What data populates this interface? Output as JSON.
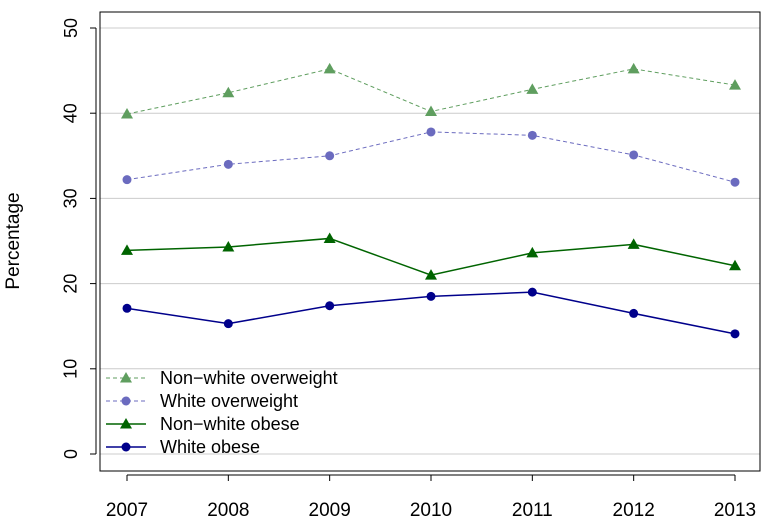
{
  "chart_data": {
    "type": "line",
    "title": "",
    "xlabel": "",
    "ylabel": "Percentage",
    "categories": [
      "2007",
      "2008",
      "2009",
      "2010",
      "2011",
      "2012",
      "2013"
    ],
    "y_ticks": [
      "0",
      "10",
      "20",
      "30",
      "40",
      "50"
    ],
    "ylim": [
      0,
      50
    ],
    "grid": "horizontal",
    "legend_position": "bottom-left",
    "series": [
      {
        "name": "Non−white overweight",
        "values": [
          39.9,
          42.4,
          45.2,
          40.2,
          42.8,
          45.2,
          43.3
        ],
        "color": "#5f9e5f",
        "marker": "triangle",
        "line": "dashed"
      },
      {
        "name": "White overweight",
        "values": [
          32.2,
          34.0,
          35.0,
          37.8,
          37.4,
          35.1,
          31.9
        ],
        "color": "#6b6bbf",
        "marker": "circle",
        "line": "dashed"
      },
      {
        "name": "Non−white obese",
        "values": [
          23.9,
          24.3,
          25.3,
          21.0,
          23.6,
          24.6,
          22.1
        ],
        "color": "#006400",
        "marker": "triangle",
        "line": "solid"
      },
      {
        "name": "White obese",
        "values": [
          17.1,
          15.3,
          17.4,
          18.5,
          19.0,
          16.5,
          14.1
        ],
        "color": "#00008b",
        "marker": "circle",
        "line": "solid"
      }
    ]
  }
}
